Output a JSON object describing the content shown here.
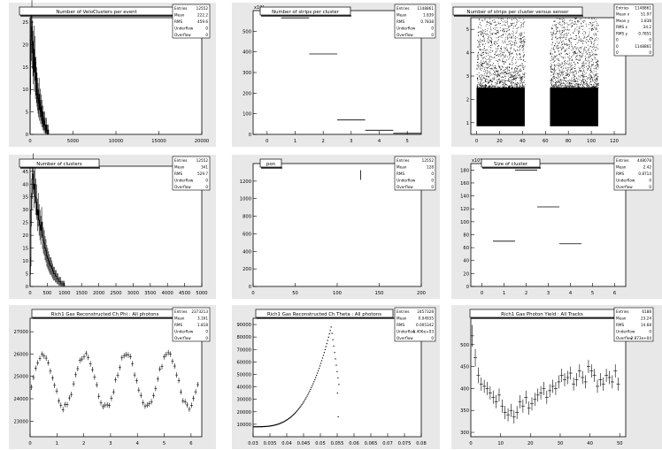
{
  "chart_data": [
    {
      "type": "histogram",
      "title": "Number of VeloClusters per event",
      "stats": [
        [
          "Entries",
          "12552"
        ],
        [
          "Mean",
          "222.2"
        ],
        [
          "RMS",
          "459.6"
        ],
        [
          "Underflow",
          "0"
        ],
        [
          "Overflow",
          "0"
        ]
      ],
      "xlim": [
        0,
        20000
      ],
      "ylim": [
        0,
        26
      ],
      "xticks": [
        [
          "0",
          0
        ],
        [
          "5000",
          5000
        ],
        [
          "10000",
          10000
        ],
        [
          "15000",
          15000
        ],
        [
          "20000",
          20000
        ]
      ],
      "yticks": [
        [
          "0",
          0
        ],
        [
          "5",
          5
        ],
        [
          "10",
          10
        ],
        [
          "15",
          15
        ],
        [
          "20",
          20
        ],
        [
          "25",
          25
        ]
      ],
      "exponent": "",
      "noisy_hist": {
        "x0": 0,
        "dx": 60,
        "values": [
          9,
          21,
          22,
          24,
          20,
          18,
          16,
          19,
          14,
          17,
          12,
          13,
          11,
          10,
          9,
          8,
          7,
          9,
          6,
          7,
          5,
          6,
          4,
          5,
          3,
          4,
          3,
          2,
          3,
          2,
          1,
          2,
          1,
          1,
          0,
          1
        ]
      }
    },
    {
      "type": "histogram",
      "title": "Number of strips per cluster",
      "stats": [
        [
          "Entries",
          "1148861"
        ],
        [
          "Mean",
          "1.839"
        ],
        [
          "RMS",
          "0.7838"
        ],
        [
          "Underflow",
          "0"
        ],
        [
          "Overflow",
          "0"
        ]
      ],
      "xlim": [
        -0.5,
        5.5
      ],
      "ylim": [
        0,
        600000
      ],
      "xticks": [
        [
          "0",
          0
        ],
        [
          "1",
          1
        ],
        [
          "2",
          2
        ],
        [
          "3",
          3
        ],
        [
          "4",
          4
        ],
        [
          "5",
          5
        ]
      ],
      "yticks": [
        [
          "0",
          0
        ],
        [
          "100",
          100000
        ],
        [
          "200",
          200000
        ],
        [
          "300",
          300000
        ],
        [
          "400",
          400000
        ],
        [
          "500",
          500000
        ]
      ],
      "exponent": "x10³",
      "bins": [
        [
          0.5,
          1.5,
          565000
        ],
        [
          1.5,
          2.5,
          390000
        ],
        [
          2.5,
          3.5,
          70000
        ],
        [
          3.5,
          4.5,
          20000
        ],
        [
          4.5,
          5.5,
          5000
        ]
      ]
    },
    {
      "type": "scatter",
      "title": "Number of strips per cluster versus sensor",
      "stats": [
        [
          "Entries",
          "1148861"
        ],
        [
          "Mean x",
          "51.97"
        ],
        [
          "Mean y",
          "1.838"
        ],
        [
          "RMS x",
          "34.2"
        ],
        [
          "RMS y",
          "0.7851"
        ],
        [
          "0",
          "0"
        ],
        [
          "0",
          "1148861"
        ],
        [
          "0",
          "0"
        ]
      ],
      "xlim": [
        -5,
        130
      ],
      "ylim": [
        0.5,
        5.5
      ],
      "xticks": [
        [
          "0",
          0
        ],
        [
          "20",
          20
        ],
        [
          "40",
          40
        ],
        [
          "60",
          60
        ],
        [
          "80",
          80
        ],
        [
          "100",
          100
        ],
        [
          "120",
          120
        ]
      ],
      "yticks": [
        [
          "1",
          1
        ],
        [
          "2",
          2
        ],
        [
          "3",
          3
        ],
        [
          "4",
          4
        ],
        [
          "5",
          5
        ]
      ],
      "exponent": "",
      "blocks": [
        [
          0,
          42
        ],
        [
          64,
          106
        ]
      ]
    },
    {
      "type": "histogram",
      "title": "Number of clusters",
      "stats": [
        [
          "Entries",
          "12552"
        ],
        [
          "Mean",
          "341"
        ],
        [
          "RMS",
          "529.7"
        ],
        [
          "Underflow",
          "0"
        ],
        [
          "Overflow",
          "0"
        ]
      ],
      "xlim": [
        0,
        5000
      ],
      "ylim": [
        0,
        47
      ],
      "xticks": [
        [
          "0",
          0
        ],
        [
          "500",
          500
        ],
        [
          "1000",
          1000
        ],
        [
          "1500",
          1500
        ],
        [
          "2000",
          2000
        ],
        [
          "2500",
          2500
        ],
        [
          "3000",
          3000
        ],
        [
          "3500",
          3500
        ],
        [
          "4000",
          4000
        ],
        [
          "4500",
          4500
        ],
        [
          "5000",
          5000
        ]
      ],
      "yticks": [
        [
          "0",
          0
        ],
        [
          "5",
          5
        ],
        [
          "10",
          10
        ],
        [
          "15",
          15
        ],
        [
          "20",
          20
        ],
        [
          "25",
          25
        ],
        [
          "30",
          30
        ],
        [
          "35",
          35
        ],
        [
          "40",
          40
        ],
        [
          "45",
          45
        ]
      ],
      "exponent": "",
      "noisy_hist": {
        "x0": 0,
        "dx": 25,
        "values": [
          8,
          30,
          42,
          44,
          38,
          40,
          35,
          33,
          28,
          30,
          26,
          24,
          22,
          25,
          20,
          18,
          17,
          15,
          14,
          12,
          11,
          10,
          9,
          8,
          8,
          7,
          6,
          5,
          5,
          4,
          4,
          3,
          3,
          2,
          2,
          2,
          1,
          1,
          1,
          1
        ]
      }
    },
    {
      "type": "histogram",
      "title": "pon",
      "stats": [
        [
          "Entries",
          "12552"
        ],
        [
          "Mean",
          "128"
        ],
        [
          "RMS",
          "0"
        ],
        [
          "Underflow",
          "0"
        ],
        [
          "Overflow",
          "0"
        ]
      ],
      "xlim": [
        0,
        200
      ],
      "ylim": [
        0,
        1400
      ],
      "xticks": [
        [
          "0",
          0
        ],
        [
          "50",
          50
        ],
        [
          "100",
          100
        ],
        [
          "150",
          150
        ],
        [
          "200",
          200
        ]
      ],
      "yticks": [
        [
          "0",
          0
        ],
        [
          "200",
          200
        ],
        [
          "400",
          400
        ],
        [
          "600",
          600
        ],
        [
          "800",
          800
        ],
        [
          "1000",
          1000
        ],
        [
          "1200",
          1200
        ]
      ],
      "exponent": "",
      "errorbars": [
        [
          128,
          1270,
          55
        ]
      ]
    },
    {
      "type": "histogram",
      "title": "Size of cluster",
      "stats": [
        [
          "Entries",
          "448078"
        ],
        [
          "Mean",
          "2.42"
        ],
        [
          "RMS",
          "0.8714"
        ],
        [
          "Underflow",
          "0"
        ],
        [
          "Overflow",
          "0"
        ]
      ],
      "xlim": [
        -0.5,
        6.5
      ],
      "ylim": [
        0,
        190000
      ],
      "xticks": [
        [
          "0",
          0
        ],
        [
          "1",
          1
        ],
        [
          "2",
          2
        ],
        [
          "3",
          3
        ],
        [
          "4",
          4
        ],
        [
          "5",
          5
        ],
        [
          "6",
          6
        ]
      ],
      "yticks": [
        [
          "0",
          0
        ],
        [
          "20",
          20000
        ],
        [
          "40",
          40000
        ],
        [
          "60",
          60000
        ],
        [
          "80",
          80000
        ],
        [
          "100",
          100000
        ],
        [
          "120",
          120000
        ],
        [
          "140",
          140000
        ],
        [
          "160",
          160000
        ],
        [
          "180",
          180000
        ]
      ],
      "exponent": "x10³",
      "bins": [
        [
          0.5,
          1.5,
          70000
        ],
        [
          1.5,
          2.5,
          180000
        ],
        [
          2.5,
          3.5,
          123000
        ],
        [
          3.5,
          4.5,
          66000
        ]
      ]
    },
    {
      "type": "errorbar",
      "title": "Rich1 Gas Reconstructed Ch Phi : All photons",
      "stats": [
        [
          "Entries",
          "2373213"
        ],
        [
          "Mean",
          "3.161"
        ],
        [
          "RMS",
          "1.818"
        ],
        [
          "Underflow",
          "0"
        ],
        [
          "Overflow",
          "0"
        ]
      ],
      "xlim": [
        0,
        6.4
      ],
      "ylim": [
        22300,
        27600
      ],
      "xticks": [
        [
          "0",
          0
        ],
        [
          "1",
          1
        ],
        [
          "2",
          2
        ],
        [
          "3",
          3
        ],
        [
          "4",
          4
        ],
        [
          "5",
          5
        ],
        [
          "6",
          6
        ]
      ],
      "yticks": [
        [
          "23000",
          23000
        ],
        [
          "24000",
          24000
        ],
        [
          "25000",
          25000
        ],
        [
          "26000",
          26000
        ],
        [
          "27000",
          27000
        ]
      ],
      "exponent": "",
      "func": {
        "kind": "phi",
        "x0": 0.05,
        "x1": 6.25,
        "n": 80,
        "err": 120
      }
    },
    {
      "type": "errorbar",
      "title": "Rich1 Gas Reconstructed Ch Theta : All photons",
      "stats": [
        [
          "Entries",
          "2457328"
        ],
        [
          "Mean",
          "0.04935"
        ],
        [
          "RMS",
          "0.005342"
        ],
        [
          "Underflow",
          "1.406e+03"
        ],
        [
          "Overflow",
          "0"
        ]
      ],
      "xlim": [
        0.03,
        0.08
      ],
      "ylim": [
        0,
        95000
      ],
      "xticks": [
        [
          "0.03",
          0.03
        ],
        [
          "0.035",
          0.035
        ],
        [
          "0.04",
          0.04
        ],
        [
          "0.045",
          0.045
        ],
        [
          "0.05",
          0.05
        ],
        [
          "0.055",
          0.055
        ],
        [
          "0.06",
          0.06
        ],
        [
          "0.065",
          0.065
        ],
        [
          "0.07",
          0.07
        ],
        [
          "0.075",
          0.075
        ],
        [
          "0.08",
          0.08
        ]
      ],
      "yticks": [
        [
          "10000",
          10000
        ],
        [
          "20000",
          20000
        ],
        [
          "30000",
          30000
        ],
        [
          "40000",
          40000
        ],
        [
          "50000",
          50000
        ],
        [
          "60000",
          60000
        ],
        [
          "70000",
          70000
        ],
        [
          "80000",
          80000
        ],
        [
          "90000",
          90000
        ]
      ],
      "exponent": "",
      "func": {
        "kind": "theta",
        "x0": 0.0302,
        "x1": 0.0555,
        "n": 100,
        "err": 0
      },
      "extra_points": [
        [
          0.0551,
          35000
        ],
        [
          0.0553,
          16000
        ]
      ]
    },
    {
      "type": "errorbar",
      "title": "Rich1 Gas Photon Yield : All Tracks",
      "stats": [
        [
          "Entries",
          "6188"
        ],
        [
          "Mean",
          "23.24"
        ],
        [
          "RMS",
          "14.68"
        ],
        [
          "Underflow",
          "0"
        ],
        [
          "Overflow",
          "2.873e+04"
        ]
      ],
      "xlim": [
        0,
        52
      ],
      "ylim": [
        290,
        560
      ],
      "xticks": [
        [
          "0",
          0
        ],
        [
          "10",
          10
        ],
        [
          "20",
          20
        ],
        [
          "30",
          30
        ],
        [
          "40",
          40
        ],
        [
          "50",
          50
        ]
      ],
      "yticks": [
        [
          "300",
          300
        ],
        [
          "350",
          350
        ],
        [
          "400",
          400
        ],
        [
          "450",
          450
        ],
        [
          "500",
          500
        ]
      ],
      "exponent": "",
      "points": [
        [
          0.5,
          520,
          25
        ],
        [
          1.5,
          470,
          20
        ],
        [
          2.5,
          430,
          18
        ],
        [
          3.5,
          410,
          15
        ],
        [
          4.5,
          405,
          15
        ],
        [
          5.5,
          400,
          15
        ],
        [
          6.5,
          390,
          15
        ],
        [
          7.5,
          380,
          15
        ],
        [
          8.5,
          370,
          15
        ],
        [
          9.5,
          385,
          15
        ],
        [
          10.5,
          360,
          15
        ],
        [
          11.5,
          345,
          15
        ],
        [
          12.5,
          340,
          15
        ],
        [
          13.5,
          350,
          15
        ],
        [
          14.5,
          335,
          15
        ],
        [
          15.5,
          345,
          15
        ],
        [
          16.5,
          370,
          15
        ],
        [
          17.5,
          360,
          15
        ],
        [
          18.5,
          380,
          15
        ],
        [
          19.5,
          355,
          15
        ],
        [
          20.5,
          365,
          15
        ],
        [
          21.5,
          375,
          15
        ],
        [
          22.5,
          385,
          15
        ],
        [
          23.5,
          390,
          15
        ],
        [
          24.5,
          400,
          15
        ],
        [
          25.5,
          380,
          15
        ],
        [
          26.5,
          395,
          15
        ],
        [
          27.5,
          405,
          15
        ],
        [
          28.5,
          400,
          15
        ],
        [
          29.5,
          415,
          15
        ],
        [
          30.5,
          430,
          15
        ],
        [
          31.5,
          420,
          15
        ],
        [
          32.5,
          425,
          15
        ],
        [
          33.5,
          435,
          15
        ],
        [
          34.5,
          410,
          15
        ],
        [
          35.5,
          420,
          15
        ],
        [
          36.5,
          440,
          15
        ],
        [
          37.5,
          425,
          15
        ],
        [
          38.5,
          415,
          15
        ],
        [
          39.5,
          450,
          15
        ],
        [
          40.5,
          440,
          15
        ],
        [
          41.5,
          430,
          15
        ],
        [
          42.5,
          405,
          15
        ],
        [
          43.5,
          420,
          15
        ],
        [
          44.5,
          410,
          15
        ],
        [
          45.5,
          430,
          15
        ],
        [
          46.5,
          425,
          15
        ],
        [
          47.5,
          415,
          15
        ],
        [
          48.5,
          440,
          15
        ],
        [
          49.5,
          410,
          15
        ]
      ]
    }
  ]
}
